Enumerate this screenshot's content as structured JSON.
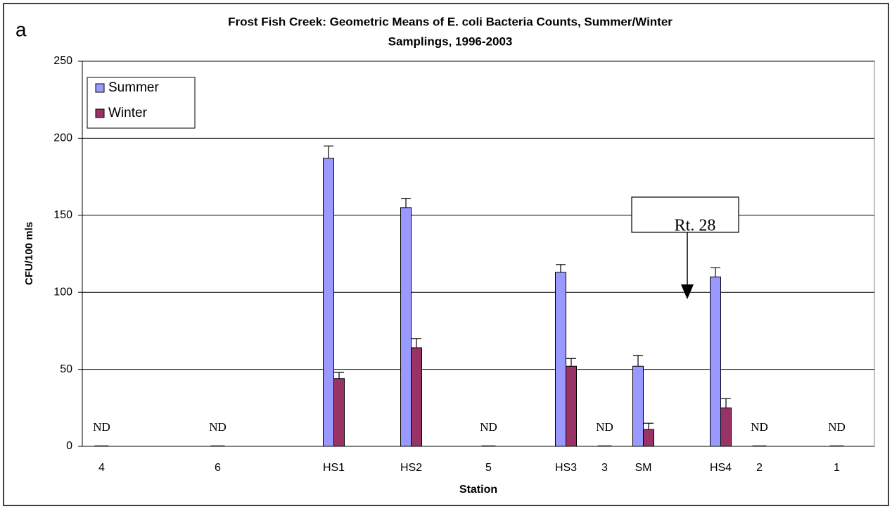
{
  "chart_data": {
    "type": "bar",
    "panel": "a",
    "title": "Frost Fish Creek: Geometric Means of E. coli Bacteria Counts, Summer/Winter",
    "subtitle": "Samplings, 1996-2003",
    "x_label": "Station",
    "y_label": "CFU/100 mls",
    "categories": [
      "4",
      null,
      null,
      "6",
      null,
      null,
      "HS1",
      null,
      "HS2",
      null,
      "5",
      null,
      "HS3",
      "3",
      "SM",
      null,
      "HS4",
      "2",
      null,
      "1"
    ],
    "series": [
      {
        "name": "Summer",
        "color": "#9999ff",
        "values": [
          null,
          null,
          null,
          null,
          null,
          null,
          187,
          null,
          155,
          null,
          null,
          null,
          113,
          null,
          52,
          null,
          110,
          null,
          null,
          null
        ],
        "errors": [
          null,
          null,
          null,
          null,
          null,
          null,
          8,
          null,
          6,
          null,
          null,
          null,
          5,
          null,
          7,
          null,
          6,
          null,
          null,
          null
        ]
      },
      {
        "name": "Winter",
        "color": "#993366",
        "values": [
          null,
          null,
          null,
          null,
          null,
          null,
          44,
          null,
          64,
          null,
          null,
          null,
          52,
          null,
          11,
          null,
          25,
          null,
          null,
          null
        ],
        "errors": [
          null,
          null,
          null,
          null,
          null,
          null,
          4,
          null,
          6,
          null,
          null,
          null,
          5,
          null,
          4,
          null,
          6,
          null,
          null,
          null
        ]
      }
    ],
    "annotations": [
      {
        "text": "ND",
        "category": "4"
      },
      {
        "text": "ND",
        "category": "6"
      },
      {
        "text": "ND",
        "category": "5"
      },
      {
        "text": "ND",
        "category": "3"
      },
      {
        "text": "ND",
        "category": "2"
      },
      {
        "text": "ND",
        "category": "1"
      }
    ],
    "callout": "Rt. 28",
    "ylim": [
      0,
      250
    ],
    "yticks": [
      0,
      50,
      100,
      150,
      200,
      250
    ],
    "grid": true,
    "legend": "upper left"
  }
}
